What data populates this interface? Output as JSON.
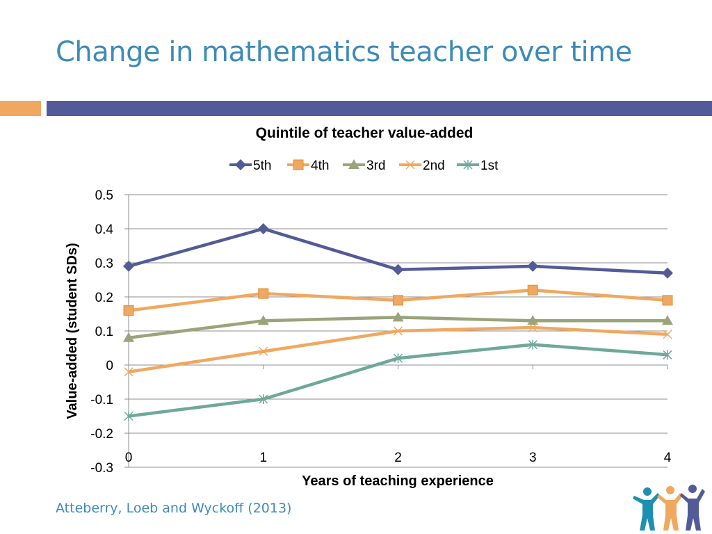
{
  "slide": {
    "title": "Change in mathematics teacher over time",
    "citation": "Atteberry, Loeb and Wyckoff (2013)"
  },
  "colors": {
    "title": "#3d8ab8",
    "accent_orange": "#f0a860",
    "accent_blue": "#525b98",
    "logo_teal": "#1d8fb2",
    "logo_orange": "#f0a860",
    "logo_purple": "#525b98"
  },
  "chart_data": {
    "type": "line",
    "title": "Quintile of teacher value-added",
    "xlabel": "Years of teaching experience",
    "ylabel": "Value-added (student SDs)",
    "x": [
      0,
      1,
      2,
      3,
      4
    ],
    "xlim": [
      0,
      4
    ],
    "ylim": [
      -0.3,
      0.5
    ],
    "y_ticks": [
      "0.5",
      "0.4",
      "0.3",
      "0.2",
      "0.1",
      "0",
      "-0.1",
      "-0.2",
      "-0.3"
    ],
    "x_ticks": [
      "0",
      "1",
      "2",
      "3",
      "4"
    ],
    "grid": true,
    "legend_position": "top-center",
    "series": [
      {
        "name": "5th",
        "values": [
          0.29,
          0.4,
          0.28,
          0.29,
          0.27
        ],
        "color": "#525b98",
        "marker": "diamond"
      },
      {
        "name": "4th",
        "values": [
          0.16,
          0.21,
          0.19,
          0.22,
          0.19
        ],
        "color": "#f0a860",
        "marker": "square"
      },
      {
        "name": "3rd",
        "values": [
          0.08,
          0.13,
          0.14,
          0.13,
          0.13
        ],
        "color": "#9aa47a",
        "marker": "triangle"
      },
      {
        "name": "2nd",
        "values": [
          -0.02,
          0.04,
          0.1,
          0.11,
          0.09
        ],
        "color": "#f0a860",
        "marker": "x"
      },
      {
        "name": "1st",
        "values": [
          -0.15,
          -0.1,
          0.02,
          0.06,
          0.03
        ],
        "color": "#6fa899",
        "marker": "star"
      }
    ]
  }
}
